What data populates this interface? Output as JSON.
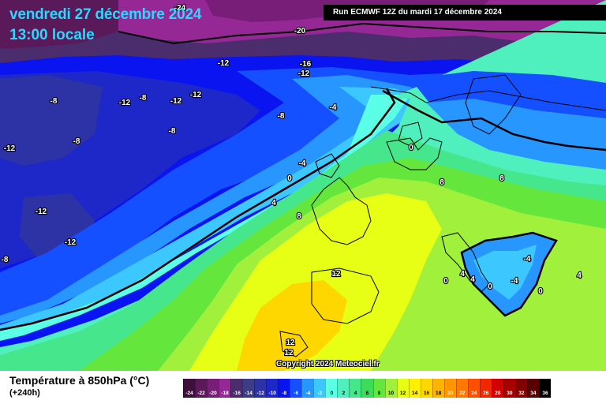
{
  "header": {
    "date_line": "vendredi 27 décembre 2024",
    "time_line": "13:00 locale",
    "run_info": "Run ECMWF 12Z du mardi 17 décembre 2024"
  },
  "footer": {
    "copyright": "Copyright 2024 Meteociel.fr",
    "legend_title": "Température à 850hPa (°C)",
    "legend_subtitle": "(+240h)"
  },
  "scale": {
    "values": [
      "-24",
      "-22",
      "-20",
      "-18",
      "-16",
      "-14",
      "-12",
      "-10",
      "-8",
      "-6",
      "-4",
      "-2",
      "0",
      "2",
      "4",
      "6",
      "8",
      "10",
      "12",
      "14",
      "16",
      "18",
      "20",
      "22",
      "24",
      "26",
      "28",
      "30",
      "32",
      "34",
      "36"
    ],
    "colors": [
      "#3c0f3c",
      "#5a1a5a",
      "#781e78",
      "#962896",
      "#4b2d6e",
      "#3c3c87",
      "#2d32a5",
      "#1e28c8",
      "#0a14f0",
      "#1450ff",
      "#2896ff",
      "#3cc8ff",
      "#5affe6",
      "#50f0be",
      "#46e68c",
      "#3cdc5a",
      "#64e63c",
      "#a0f03c",
      "#e6ff14",
      "#fff000",
      "#ffd700",
      "#ffb400",
      "#ff9600",
      "#ff7800",
      "#ff5000",
      "#f02800",
      "#d20000",
      "#aa0000",
      "#820000",
      "#5a0000",
      "#000000"
    ]
  },
  "map_labels": [
    {
      "text": "-24"
    },
    {
      "text": "-20"
    },
    {
      "text": "-16"
    },
    {
      "text": "-12"
    },
    {
      "text": "-12"
    },
    {
      "text": "-12"
    },
    {
      "text": "-12"
    },
    {
      "text": "-12"
    },
    {
      "text": "-8"
    },
    {
      "text": "-8"
    },
    {
      "text": "-8"
    },
    {
      "text": "-8"
    },
    {
      "text": "-8"
    },
    {
      "text": "-12"
    },
    {
      "text": "-12"
    },
    {
      "text": "-12"
    },
    {
      "text": "-8"
    },
    {
      "text": "-4"
    },
    {
      "text": "-4"
    },
    {
      "text": "0"
    },
    {
      "text": "4"
    },
    {
      "text": "8"
    },
    {
      "text": "0"
    },
    {
      "text": "8"
    },
    {
      "text": "8"
    },
    {
      "text": "12"
    },
    {
      "text": "12"
    },
    {
      "text": "12"
    },
    {
      "text": "4"
    },
    {
      "text": "0"
    },
    {
      "text": "4"
    },
    {
      "text": "0"
    },
    {
      "text": "-4"
    },
    {
      "text": "-4"
    },
    {
      "text": "0"
    },
    {
      "text": "4"
    }
  ]
}
